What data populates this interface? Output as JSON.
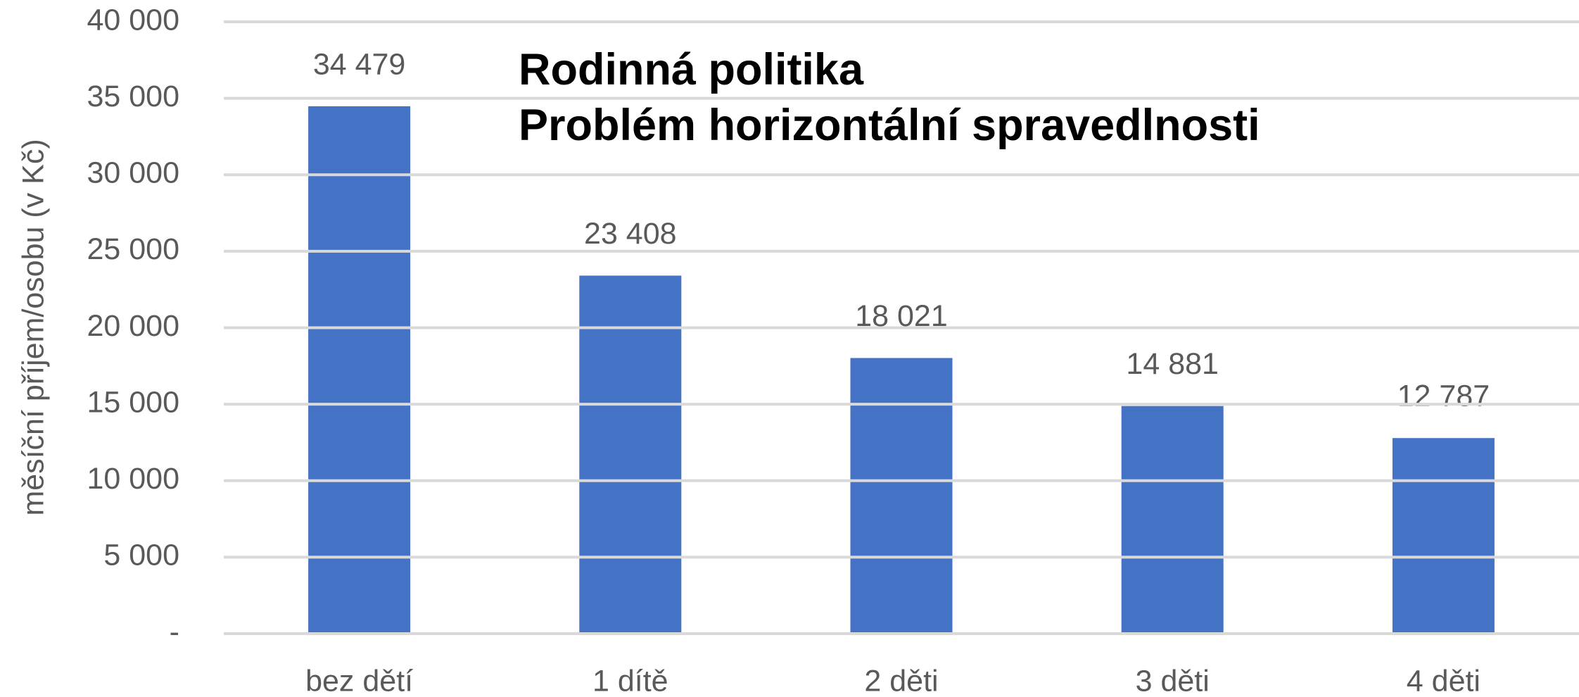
{
  "chart_data": {
    "type": "bar",
    "title": "Rodinná politika",
    "subtitle": "Problém horizontální spravedlnosti",
    "y_label": "měsíční příjem/osobu (v Kč)",
    "categories": [
      "bez dětí",
      "1 dítě",
      "2 děti",
      "3 děti",
      "4 děti"
    ],
    "values": [
      34479,
      23408,
      18021,
      14881,
      12787
    ],
    "value_labels": [
      "34 479",
      "23 408",
      "18 021",
      "14 881",
      "12 787"
    ],
    "color": "#4472c4",
    "ylim": [
      0,
      40000
    ],
    "yticks": [
      {
        "value": 0,
        "label": "-"
      },
      {
        "value": 5000,
        "label": "5 000"
      },
      {
        "value": 10000,
        "label": "10 000"
      },
      {
        "value": 15000,
        "label": "15 000"
      },
      {
        "value": 20000,
        "label": "20 000"
      },
      {
        "value": 25000,
        "label": "25 000"
      },
      {
        "value": 30000,
        "label": "30 000"
      },
      {
        "value": 35000,
        "label": "35 000"
      },
      {
        "value": 40000,
        "label": "40 000"
      }
    ],
    "grid": true
  }
}
